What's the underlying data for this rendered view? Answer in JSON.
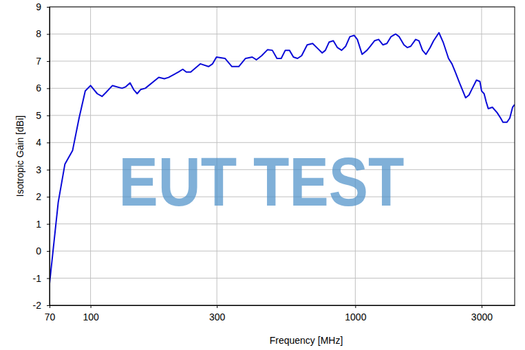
{
  "chart_data": {
    "type": "line",
    "x_label": "Frequency [MHz]",
    "y_label": "Isotropic Gain [dBi]",
    "watermark": "EUT TEST",
    "log": "x",
    "grid": true,
    "color": "#0a0ad8",
    "xlim": [
      70,
      4000
    ],
    "ylim": [
      -2,
      9
    ],
    "xticks": [
      70,
      100,
      300,
      1000,
      3000
    ],
    "yticks": [
      -2,
      -1,
      0,
      1,
      2,
      3,
      4,
      5,
      6,
      7,
      8,
      9
    ],
    "x": [
      70,
      75.5,
      80,
      85.5,
      90.5,
      95.5,
      100,
      106,
      110.5,
      114.5,
      121,
      131.5,
      135.5,
      141,
      145.5,
      150,
      154.5,
      161,
      181,
      190,
      197,
      215,
      223,
      230,
      239,
      260,
      279,
      289,
      299,
      322,
      342,
      363,
      385,
      408,
      423,
      443,
      466,
      486,
      506,
      525,
      544,
      564,
      584,
      605,
      627,
      658,
      690,
      724,
      750,
      771,
      796,
      826,
      856,
      888,
      920,
      954,
      990,
      1018,
      1061,
      1107,
      1140,
      1182,
      1225,
      1271,
      1316,
      1364,
      1421,
      1465,
      1527,
      1574,
      1620,
      1690,
      1740,
      1794,
      1849,
      1917,
      1976,
      2070,
      2147,
      2250,
      2318,
      2386,
      2475,
      2549,
      2610,
      2688,
      2768,
      2869,
      2956,
      3000,
      3066,
      3122,
      3179,
      3295,
      3434,
      3540,
      3612,
      3742,
      3834,
      3928,
      4000
    ],
    "values": [
      -1.2,
      1.8,
      3.2,
      3.7,
      4.9,
      5.9,
      6.1,
      5.8,
      5.7,
      5.85,
      6.1,
      6.0,
      6.05,
      6.2,
      5.95,
      5.8,
      5.95,
      6.0,
      6.4,
      6.35,
      6.4,
      6.6,
      6.7,
      6.6,
      6.6,
      6.9,
      6.8,
      6.9,
      7.15,
      7.1,
      6.8,
      6.8,
      7.1,
      7.15,
      7.05,
      7.2,
      7.42,
      7.4,
      7.1,
      7.1,
      7.4,
      7.4,
      7.15,
      7.1,
      7.2,
      7.6,
      7.65,
      7.45,
      7.3,
      7.4,
      7.7,
      7.75,
      7.5,
      7.4,
      7.55,
      7.9,
      7.95,
      7.8,
      7.25,
      7.4,
      7.55,
      7.75,
      7.8,
      7.6,
      7.65,
      7.9,
      8.0,
      7.9,
      7.6,
      7.5,
      7.55,
      7.8,
      7.75,
      7.4,
      7.25,
      7.5,
      7.75,
      8.05,
      7.7,
      7.1,
      6.9,
      6.6,
      6.2,
      5.9,
      5.65,
      5.75,
      6.0,
      6.3,
      6.25,
      5.9,
      5.8,
      5.5,
      5.25,
      5.3,
      5.1,
      4.9,
      4.75,
      4.75,
      4.9,
      5.3,
      5.4
    ]
  }
}
